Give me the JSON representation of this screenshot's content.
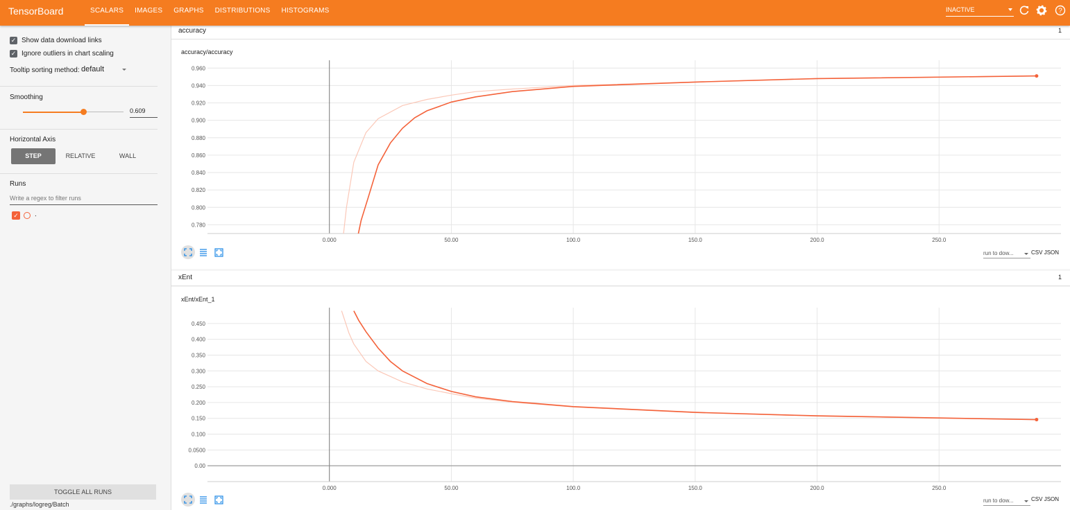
{
  "header": {
    "title": "TensorBoard",
    "tabs": [
      {
        "label": "SCALARS",
        "active": true
      },
      {
        "label": "IMAGES",
        "active": false
      },
      {
        "label": "GRAPHS",
        "active": false
      },
      {
        "label": "DISTRIBUTIONS",
        "active": false
      },
      {
        "label": "HISTOGRAMS",
        "active": false
      }
    ],
    "status_select": "INACTIVE",
    "icons": [
      "refresh-icon",
      "settings-icon",
      "help-icon"
    ]
  },
  "sidebar": {
    "show_download_links": {
      "label": "Show data download links",
      "checked": true
    },
    "ignore_outliers": {
      "label": "Ignore outliers in chart scaling",
      "checked": true
    },
    "tooltip_sorting": {
      "label": "Tooltip sorting method:",
      "value": "default"
    },
    "smoothing": {
      "label": "Smoothing",
      "value": "0.609",
      "fraction": 0.609
    },
    "horizontal_axis": {
      "label": "Horizontal Axis",
      "options": [
        "STEP",
        "RELATIVE",
        "WALL"
      ],
      "selected": "STEP"
    },
    "runs": {
      "label": "Runs",
      "filter_placeholder": "Write a regex to filter runs",
      "items": [
        {
          "name": ".",
          "checked": true,
          "color": "#f4623a"
        }
      ]
    },
    "toggle_all": "TOGGLE ALL RUNS",
    "logdir": "./graphs/logreg/Batch"
  },
  "groups": [
    {
      "name": "accuracy",
      "count": "1",
      "card_title": "accuracy/accuracy"
    },
    {
      "name": "xEnt",
      "count": "1",
      "card_title": "xEnt/xEnt_1"
    }
  ],
  "download": {
    "run_select": "run to dow...",
    "csv": "CSV",
    "json": "JSON"
  },
  "colors": {
    "accent": "#f57c20",
    "series": "#f4623a",
    "series_raw": "#fbc8b8"
  },
  "chart_data": [
    {
      "type": "line",
      "title": "accuracy/accuracy",
      "x_ticks": [
        "0.000",
        "50.00",
        "100.0",
        "150.0",
        "200.0",
        "250.0"
      ],
      "y_ticks": [
        "0.960",
        "0.940",
        "0.920",
        "0.900",
        "0.880",
        "0.860",
        "0.840",
        "0.820",
        "0.800",
        "0.780"
      ],
      "xlim": [
        -50,
        300
      ],
      "ylim": [
        0.77,
        0.969
      ],
      "grid": true,
      "series": [
        {
          "values_role": "smoothed",
          "x": [
            10,
            13,
            16,
            20,
            25,
            30,
            35,
            40,
            50,
            60,
            75,
            100,
            150,
            200,
            290
          ],
          "y": [
            0.745,
            0.785,
            0.812,
            0.849,
            0.874,
            0.891,
            0.903,
            0.911,
            0.921,
            0.927,
            0.933,
            0.939,
            0.944,
            0.948,
            0.951
          ]
        },
        {
          "values_role": "raw",
          "x": [
            5,
            7,
            10,
            15,
            20,
            30,
            40,
            50,
            60,
            75,
            100,
            150,
            200,
            290
          ],
          "y": [
            0.75,
            0.8,
            0.852,
            0.886,
            0.902,
            0.917,
            0.924,
            0.929,
            0.933,
            0.936,
            0.94,
            0.944,
            0.948,
            0.951
          ]
        }
      ]
    },
    {
      "type": "line",
      "title": "xEnt/xEnt_1",
      "x_ticks": [
        "0.000",
        "50.00",
        "100.0",
        "150.0",
        "200.0",
        "250.0"
      ],
      "y_ticks": [
        "0.450",
        "0.400",
        "0.350",
        "0.300",
        "0.250",
        "0.200",
        "0.150",
        "0.100",
        "0.0500",
        "0.00"
      ],
      "xlim": [
        -50,
        300
      ],
      "ylim": [
        -0.05,
        0.5
      ],
      "grid": true,
      "series": [
        {
          "values_role": "smoothed",
          "x": [
            10,
            12,
            15,
            20,
            25,
            30,
            40,
            50,
            60,
            75,
            100,
            150,
            200,
            290
          ],
          "y": [
            0.49,
            0.46,
            0.424,
            0.372,
            0.33,
            0.3,
            0.26,
            0.235,
            0.218,
            0.203,
            0.187,
            0.169,
            0.158,
            0.146
          ]
        },
        {
          "values_role": "raw",
          "x": [
            5,
            8,
            10,
            15,
            20,
            30,
            40,
            50,
            60,
            75,
            100,
            150,
            200,
            290
          ],
          "y": [
            0.49,
            0.42,
            0.385,
            0.33,
            0.3,
            0.265,
            0.243,
            0.228,
            0.214,
            0.201,
            0.186,
            0.168,
            0.157,
            0.146
          ]
        }
      ]
    }
  ]
}
